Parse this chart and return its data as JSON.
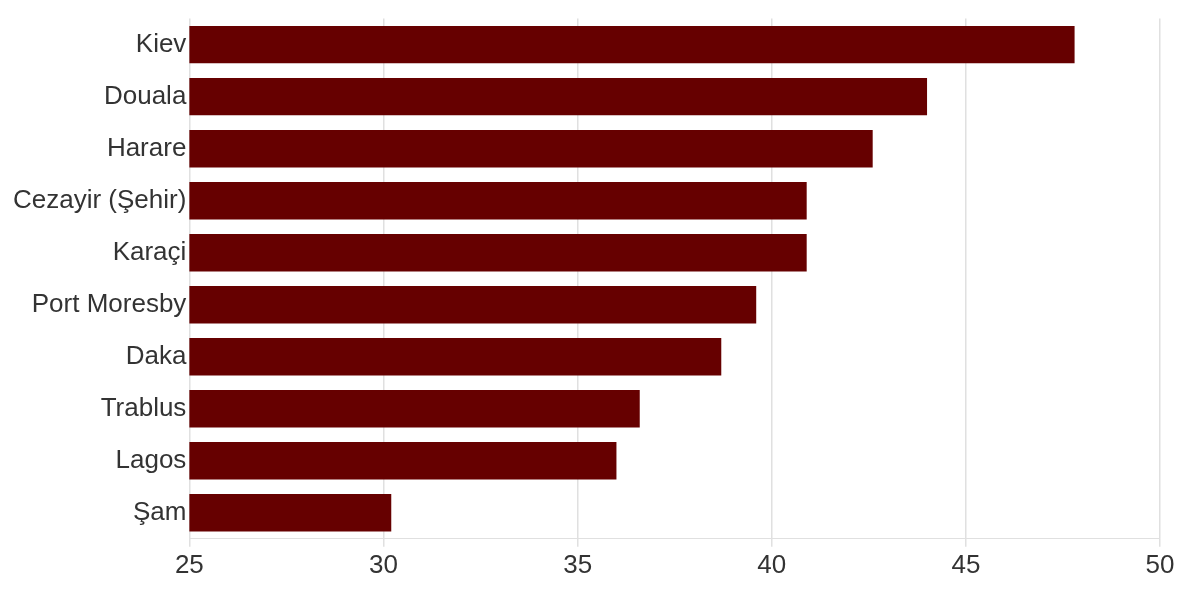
{
  "chart_data": {
    "type": "bar",
    "orientation": "horizontal",
    "categories": [
      "Kiev",
      "Douala",
      "Harare",
      "Cezayir (Şehir)",
      "Karaçi",
      "Port Moresby",
      "Daka",
      "Trablus",
      "Lagos",
      "Şam"
    ],
    "values": [
      47.8,
      44.0,
      42.6,
      40.9,
      40.9,
      39.6,
      38.7,
      36.6,
      36.0,
      30.2
    ],
    "color": "#660000",
    "xlim": [
      25,
      50
    ],
    "xticks": [
      25,
      30,
      35,
      40,
      45,
      50
    ],
    "grid": "x",
    "legend": false
  }
}
